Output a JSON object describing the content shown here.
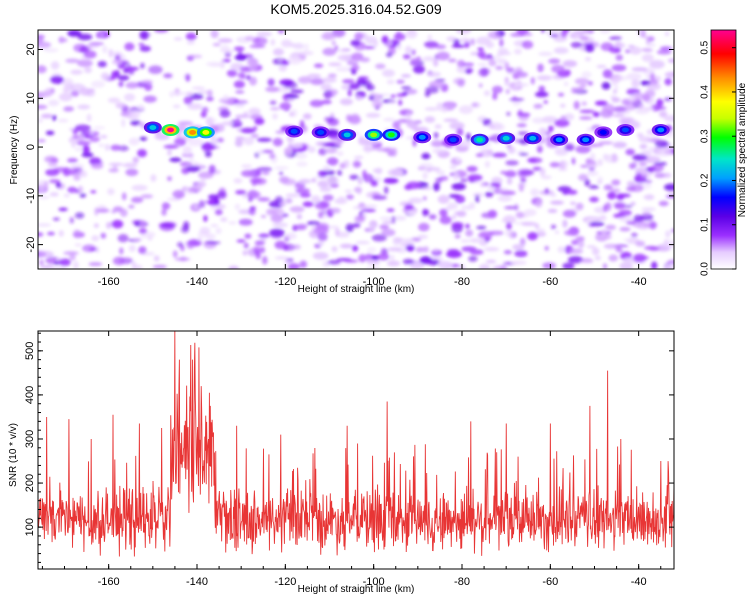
{
  "title": "KOM5.2025.316.04.52.G09",
  "chart_data": [
    {
      "type": "heatmap",
      "name": "spectrogram",
      "xlabel": "Height of straight line (km)",
      "ylabel": "Frequency (Hz)",
      "xlim": [
        -176,
        -32
      ],
      "ylim": [
        -25,
        24
      ],
      "xticks": [
        -160,
        -140,
        -120,
        -100,
        -80,
        -60,
        -40
      ],
      "yticks": [
        -20,
        -10,
        0,
        10,
        20
      ],
      "grid": false,
      "colorbar": {
        "label": "Normalized spectral amplitude",
        "range": [
          0,
          0.54
        ],
        "ticks": [
          0,
          0.1,
          0.2,
          0.3,
          0.4,
          0.5
        ],
        "colormap": [
          "#ffffff",
          "#e6ccff",
          "#9b30ff",
          "#5a00e6",
          "#0000ff",
          "#00a0ff",
          "#00e6c8",
          "#00ff00",
          "#c8ff00",
          "#ffff00",
          "#ff8c00",
          "#ff0000",
          "#ff0090"
        ]
      },
      "signal_band": {
        "freq_hz": 3,
        "segments": [
          {
            "x": -146,
            "y": 3.5,
            "amp": 0.54
          },
          {
            "x": -141,
            "y": 3.0,
            "amp": 0.45
          },
          {
            "x": -138,
            "y": 3.0,
            "amp": 0.4
          },
          {
            "x": -150,
            "y": 4.0,
            "amp": 0.25
          },
          {
            "x": -118,
            "y": 3.2,
            "amp": 0.2
          },
          {
            "x": -112,
            "y": 3.0,
            "amp": 0.2
          },
          {
            "x": -106,
            "y": 2.5,
            "amp": 0.25
          },
          {
            "x": -100,
            "y": 2.5,
            "amp": 0.35
          },
          {
            "x": -96,
            "y": 2.5,
            "amp": 0.32
          },
          {
            "x": -89,
            "y": 2.0,
            "amp": 0.22
          },
          {
            "x": -82,
            "y": 1.5,
            "amp": 0.2
          },
          {
            "x": -76,
            "y": 1.5,
            "amp": 0.28
          },
          {
            "x": -70,
            "y": 1.8,
            "amp": 0.26
          },
          {
            "x": -64,
            "y": 1.8,
            "amp": 0.24
          },
          {
            "x": -58,
            "y": 1.5,
            "amp": 0.22
          },
          {
            "x": -52,
            "y": 1.5,
            "amp": 0.22
          },
          {
            "x": -48,
            "y": 3.0,
            "amp": 0.18
          },
          {
            "x": -43,
            "y": 3.5,
            "amp": 0.2
          },
          {
            "x": -35,
            "y": 3.5,
            "amp": 0.22
          }
        ]
      }
    },
    {
      "type": "line",
      "name": "snr",
      "xlabel": "Height of straight line (km)",
      "ylabel": "SNR (10 * v/v)",
      "xlim": [
        -176,
        -32
      ],
      "ylim": [
        5,
        545
      ],
      "xticks": [
        -160,
        -140,
        -120,
        -100,
        -80,
        -60,
        -40
      ],
      "yticks": [
        100,
        200,
        300,
        400,
        500
      ],
      "line_color": "#e83535",
      "peaks": [
        {
          "x": -175,
          "y": 165
        },
        {
          "x": -174,
          "y": 350
        },
        {
          "x": -169,
          "y": 345
        },
        {
          "x": -164,
          "y": 300
        },
        {
          "x": -159,
          "y": 355
        },
        {
          "x": -153,
          "y": 335
        },
        {
          "x": -148,
          "y": 325
        },
        {
          "x": -145,
          "y": 545
        },
        {
          "x": -144,
          "y": 480
        },
        {
          "x": -141,
          "y": 480
        },
        {
          "x": -139,
          "y": 420
        },
        {
          "x": -137,
          "y": 375
        },
        {
          "x": -131,
          "y": 330
        },
        {
          "x": -121,
          "y": 310
        },
        {
          "x": -106,
          "y": 330
        },
        {
          "x": -97,
          "y": 385
        },
        {
          "x": -78,
          "y": 340
        },
        {
          "x": -70,
          "y": 335
        },
        {
          "x": -60,
          "y": 335
        },
        {
          "x": -51,
          "y": 375
        },
        {
          "x": -47,
          "y": 455
        },
        {
          "x": -44,
          "y": 300
        },
        {
          "x": -35,
          "y": 250
        }
      ],
      "baseline_mean": 115,
      "baseline_spread": 70
    }
  ]
}
